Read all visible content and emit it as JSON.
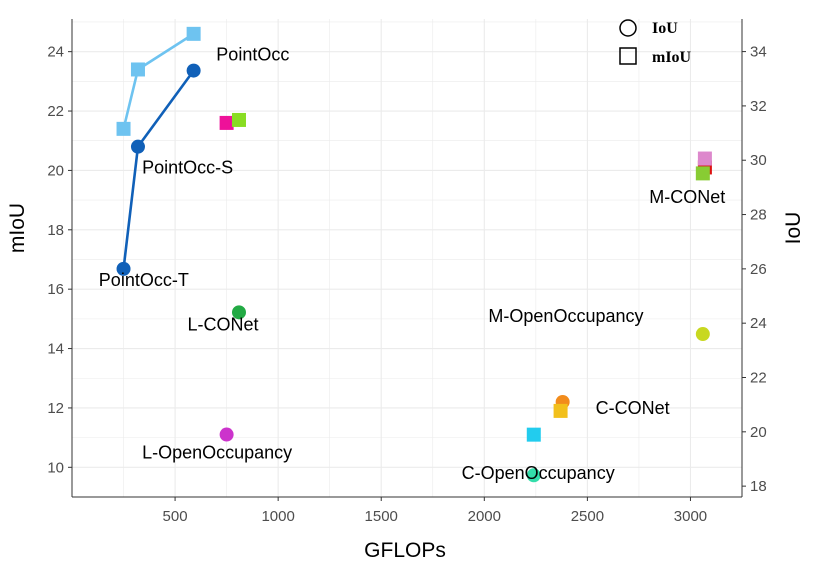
{
  "chart_data": {
    "type": "scatter",
    "xlabel": "GFLOPs",
    "ylabel_left": "mIoU",
    "ylabel_right": "IoU",
    "xlim": [
      0,
      3250
    ],
    "ylim_left": [
      9,
      25.1
    ],
    "ylim_right": [
      17.6,
      35.2
    ],
    "x_ticks": [
      500,
      1000,
      1500,
      2000,
      2500,
      3000
    ],
    "x_tick_labels": [
      "500",
      "1000",
      "1500",
      "2000",
      "2500",
      "3000"
    ],
    "y_left_ticks": [
      10,
      12,
      14,
      16,
      18,
      20,
      22,
      24
    ],
    "y_left_tick_labels": [
      "10",
      "12",
      "14",
      "16",
      "18",
      "20",
      "22",
      "24"
    ],
    "y_right_ticks": [
      18,
      20,
      22,
      24,
      26,
      28,
      30,
      32,
      34
    ],
    "y_right_tick_labels": [
      "18",
      "20",
      "22",
      "24",
      "26",
      "28",
      "30",
      "32",
      "34"
    ],
    "legend": [
      {
        "marker": "circle",
        "label": "IoU"
      },
      {
        "marker": "square",
        "label": "mIoU"
      }
    ],
    "series": [
      {
        "name": "PointOcc mIoU line",
        "type": "line",
        "axis": "left",
        "marker": "square",
        "color": "#6ec3f0",
        "points": [
          {
            "x": 250,
            "y": 21.4
          },
          {
            "x": 320,
            "y": 23.4
          },
          {
            "x": 590,
            "y": 24.6
          }
        ]
      },
      {
        "name": "PointOcc IoU line",
        "type": "line",
        "axis": "right",
        "marker": "circle",
        "color": "#1060b8",
        "points": [
          {
            "x": 250,
            "y": 26
          },
          {
            "x": 320,
            "y": 30.5
          },
          {
            "x": 590,
            "y": 33.3
          }
        ]
      }
    ],
    "markers": [
      {
        "name": "PointOcc-T",
        "metric": "IoU",
        "axis": "right",
        "shape": "circle",
        "x": 250,
        "y": 26,
        "color": "#1060b8"
      },
      {
        "name": "PointOcc-S",
        "metric": "IoU",
        "axis": "right",
        "shape": "circle",
        "x": 320,
        "y": 30.5,
        "color": "#1060b8"
      },
      {
        "name": "PointOcc",
        "metric": "IoU",
        "axis": "right",
        "shape": "circle",
        "x": 590,
        "y": 33.3,
        "color": "#1060b8"
      },
      {
        "name": "L-CONet",
        "metric": "IoU",
        "axis": "right",
        "shape": "circle",
        "x": 810,
        "y": 24.4,
        "color": "#22aa44"
      },
      {
        "name": "L-OpenOccupancy",
        "metric": "IoU",
        "axis": "right",
        "shape": "circle",
        "x": 750,
        "y": 19.9,
        "color": "#cc33cc"
      },
      {
        "name": "C-CONet",
        "metric": "IoU",
        "axis": "right",
        "shape": "circle",
        "x": 2380,
        "y": 21.1,
        "color": "#f28c1c"
      },
      {
        "name": "C-OpenOccupancy",
        "metric": "IoU",
        "axis": "right",
        "shape": "circle",
        "x": 2240,
        "y": 18.4,
        "color": "#33ddaa"
      },
      {
        "name": "M-OpenOccupancy",
        "metric": "IoU",
        "axis": "right",
        "shape": "circle",
        "x": 3060,
        "y": 23.6,
        "color": "#c8d820"
      },
      {
        "name": "L-OpenOccupancy",
        "metric": "mIoU",
        "axis": "left",
        "shape": "square",
        "x": 750,
        "y": 21.6,
        "color": "#ee1199"
      },
      {
        "name": "L-CONet",
        "metric": "mIoU",
        "axis": "left",
        "shape": "square",
        "x": 810,
        "y": 21.7,
        "color": "#88dd22"
      },
      {
        "name": "C-OpenOccupancy",
        "metric": "mIoU",
        "axis": "left",
        "shape": "square",
        "x": 2240,
        "y": 11.1,
        "color": "#22ccee"
      },
      {
        "name": "C-CONet",
        "metric": "mIoU",
        "axis": "left",
        "shape": "square",
        "x": 2370,
        "y": 11.9,
        "color": "#f2c01c"
      },
      {
        "name": "M-OpenOccupancy",
        "metric": "mIoU",
        "axis": "left",
        "shape": "square",
        "x": 3070,
        "y": 20.1,
        "color": "#dd1111"
      },
      {
        "name": "M-OpenOccupancy",
        "metric": "mIoU",
        "axis": "left",
        "shape": "square",
        "x": 3070,
        "y": 20.4,
        "color": "#dd88cc"
      },
      {
        "name": "M-CONet",
        "metric": "mIoU",
        "axis": "left",
        "shape": "square",
        "x": 3060,
        "y": 19.9,
        "color": "#88cc33"
      }
    ],
    "annotations": [
      {
        "text": "PointOcc",
        "x": 700,
        "y": 23.7,
        "axis": "left",
        "anchor": "start"
      },
      {
        "text": "PointOcc-S",
        "x": 340,
        "y": 19.9,
        "axis": "left",
        "anchor": "start"
      },
      {
        "text": "PointOcc-T",
        "x": 130,
        "y": 16.1,
        "axis": "left",
        "anchor": "start"
      },
      {
        "text": "L-CONet",
        "x": 560,
        "y": 14.6,
        "axis": "left",
        "anchor": "start"
      },
      {
        "text": "L-OpenOccupancy",
        "x": 340,
        "y": 10.3,
        "axis": "left",
        "anchor": "start"
      },
      {
        "text": "M-CONet",
        "x": 2800,
        "y": 18.9,
        "axis": "left",
        "anchor": "start"
      },
      {
        "text": "M-OpenOccupancy",
        "x": 2020,
        "y": 14.9,
        "axis": "left",
        "anchor": "start"
      },
      {
        "text": "C-CONet",
        "x": 2540,
        "y": 11.8,
        "axis": "left",
        "anchor": "start"
      },
      {
        "text": "C-OpenOccupancy",
        "x": 1890,
        "y": 9.6,
        "axis": "left",
        "anchor": "start"
      }
    ]
  }
}
